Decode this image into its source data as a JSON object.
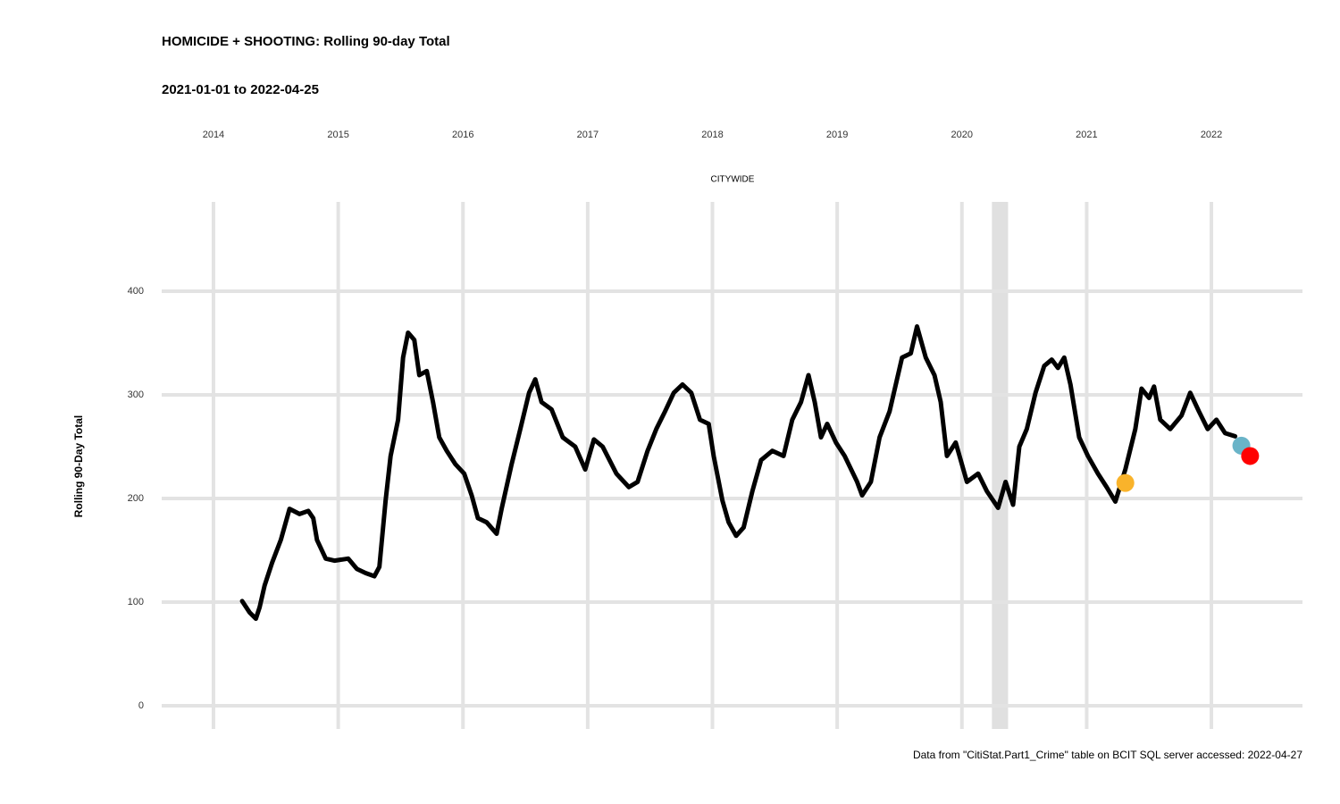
{
  "chart_data": {
    "type": "line",
    "title": "HOMICIDE + SHOOTING: Rolling 90-day Total",
    "subtitle": "2021-01-01 to 2022-04-25",
    "panel_label": "CITYWIDE",
    "ylabel": "Rolling 90-Day Total",
    "caption": "Data from \"CitiStat.Part1_Crime\" table on BCIT SQL server accessed: 2022-04-27",
    "xlim": [
      2013.585,
      2022.73
    ],
    "xticks": [
      2014,
      2015,
      2016,
      2017,
      2018,
      2019,
      2020,
      2021,
      2022
    ],
    "ylim": [
      -22.4,
      486.2
    ],
    "yticks": [
      0,
      100,
      200,
      300,
      400
    ],
    "grid": true,
    "shade": {
      "xlim": [
        2020.24,
        2020.37
      ],
      "color": "#e0e0e0"
    },
    "series": [
      {
        "color": "#000000",
        "x": [
          2014.23,
          2014.29,
          2014.34,
          2014.37,
          2014.41,
          2014.47,
          2014.54,
          2014.61,
          2014.69,
          2014.76,
          2014.8,
          2014.83,
          2014.9,
          2014.97,
          2015.08,
          2015.15,
          2015.22,
          2015.29,
          2015.33,
          2015.38,
          2015.42,
          2015.48,
          2015.52,
          2015.56,
          2015.61,
          2015.65,
          2015.71,
          2015.76,
          2015.81,
          2015.87,
          2015.94,
          2016.01,
          2016.07,
          2016.12,
          2016.19,
          2016.27,
          2016.31,
          2016.39,
          2016.46,
          2016.53,
          2016.58,
          2016.63,
          2016.71,
          2016.8,
          2016.9,
          2016.98,
          2017.05,
          2017.12,
          2017.23,
          2017.33,
          2017.4,
          2017.48,
          2017.55,
          2017.62,
          2017.69,
          2017.76,
          2017.83,
          2017.9,
          2017.97,
          2018.01,
          2018.08,
          2018.13,
          2018.19,
          2018.25,
          2018.32,
          2018.39,
          2018.48,
          2018.57,
          2018.64,
          2018.71,
          2018.77,
          2018.82,
          2018.87,
          2018.92,
          2018.99,
          2019.06,
          2019.16,
          2019.2,
          2019.27,
          2019.34,
          2019.42,
          2019.52,
          2019.59,
          2019.64,
          2019.71,
          2019.78,
          2019.83,
          2019.88,
          2019.95,
          2020.04,
          2020.13,
          2020.2,
          2020.29,
          2020.35,
          2020.41,
          2020.46,
          2020.52,
          2020.59,
          2020.66,
          2020.72,
          2020.77,
          2020.82,
          2020.87,
          2020.94,
          2021.01,
          2021.09,
          2021.16,
          2021.23,
          2021.31,
          2021.39,
          2021.44,
          2021.5,
          2021.54,
          2021.59,
          2021.67,
          2021.76,
          2021.83,
          2021.9,
          2021.97,
          2022.04,
          2022.11,
          2022.19
        ],
        "values": [
          101,
          90,
          84,
          95,
          116,
          138,
          160,
          190,
          185,
          188,
          181,
          160,
          142,
          140,
          142,
          132,
          128,
          125,
          134,
          198,
          241,
          276,
          336,
          360,
          353,
          319,
          323,
          293,
          259,
          246,
          233,
          224,
          203,
          181,
          177,
          166,
          190,
          233,
          267,
          302,
          315,
          293,
          286,
          259,
          250,
          228,
          257,
          250,
          224,
          211,
          216,
          246,
          267,
          284,
          302,
          310,
          302,
          276,
          272,
          241,
          198,
          177,
          164,
          172,
          207,
          237,
          246,
          241,
          276,
          293,
          319,
          293,
          259,
          272,
          254,
          241,
          216,
          203,
          216,
          259,
          284,
          336,
          340,
          366,
          336,
          319,
          293,
          241,
          254,
          216,
          224,
          207,
          191,
          216,
          194,
          250,
          267,
          302,
          328,
          334,
          326,
          336,
          310,
          259,
          241,
          224,
          211,
          197,
          228,
          267,
          306,
          297,
          308,
          276,
          267,
          280,
          302,
          284,
          267,
          276,
          263,
          260
        ]
      }
    ],
    "highlights": [
      {
        "x": 2021.31,
        "y": 215,
        "color": "#f9b32b"
      },
      {
        "x": 2022.24,
        "y": 251,
        "color": "#6ab4c8"
      },
      {
        "x": 2022.31,
        "y": 241,
        "color": "#ff0000"
      }
    ]
  }
}
